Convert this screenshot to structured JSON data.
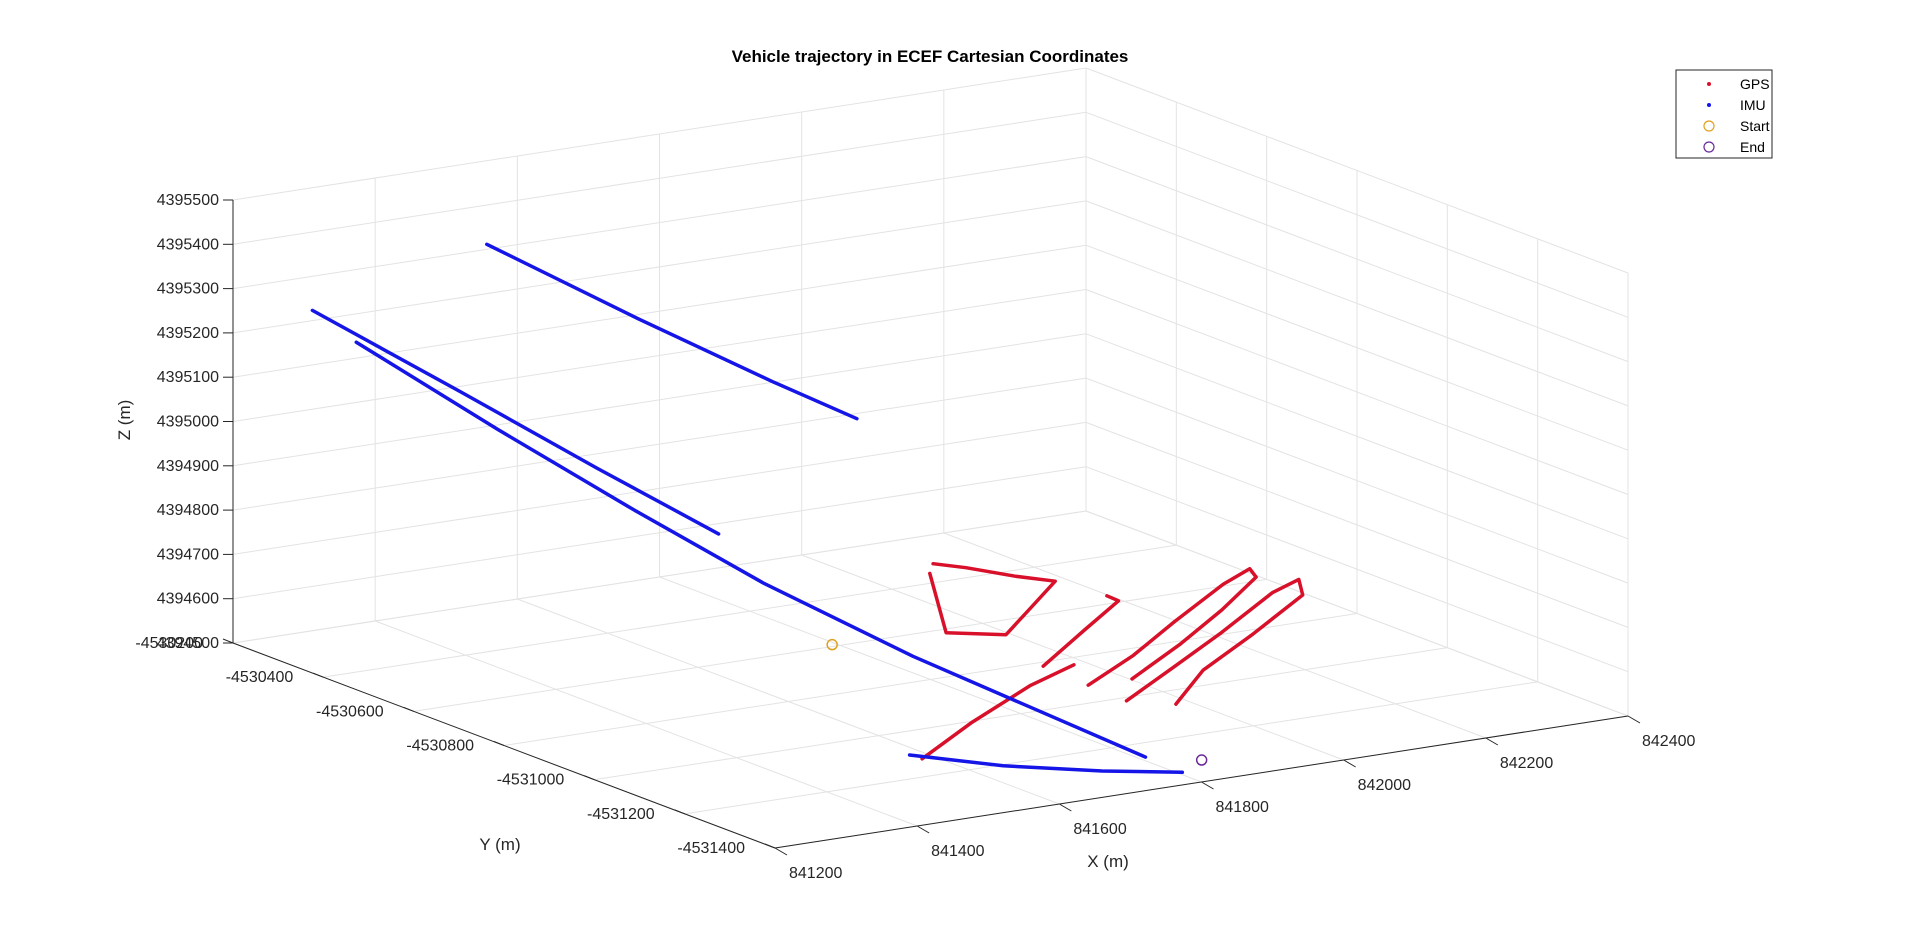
{
  "chart_data": {
    "type": "line",
    "projection": "3d",
    "title": "Vehicle trajectory in ECEF Cartesian Coordinates",
    "xlabel": "X (m)",
    "ylabel": "Y (m)",
    "zlabel": "Z (m)",
    "xlim": [
      841200,
      842400
    ],
    "ylim": [
      -4531400,
      -4530200
    ],
    "zlim": [
      4394500,
      4395500
    ],
    "grid": true,
    "legend_position": "top-right",
    "x_ticks": [
      "841200",
      "841400",
      "841600",
      "841800",
      "842000",
      "842200",
      "842400"
    ],
    "y_ticks": [
      "-4530200",
      "-4530400",
      "-4530600",
      "-4530800",
      "-4531000",
      "-4531200",
      "-4531400"
    ],
    "z_ticks": [
      "4394500",
      "4394600",
      "4394700",
      "4394800",
      "4394900",
      "4395000",
      "4395100",
      "4395200",
      "4395300",
      "4395400",
      "4395500"
    ],
    "legend": [
      {
        "name": "GPS",
        "marker": "dot",
        "color": "#d8102a"
      },
      {
        "name": "IMU",
        "marker": "dot",
        "color": "#1515e8"
      },
      {
        "name": "Start",
        "marker": "circle",
        "color": "#e0a020"
      },
      {
        "name": "End",
        "marker": "circle",
        "color": "#6a2a9a"
      }
    ],
    "series": [
      {
        "name": "GPS",
        "color": "#d8102a",
        "segments": [
          [
            [
              841752,
              -4530874,
              4394780
            ],
            [
              841752,
              -4530910,
              4394660
            ],
            [
              841830,
              -4530920,
              4394640
            ],
            [
              841890,
              -4530880,
              4394670
            ],
            [
              841950,
              -4530840,
              4394700
            ],
            [
              841900,
              -4530830,
              4394720
            ],
            [
              841850,
              -4530800,
              4394740
            ],
            [
              841810,
              -4530790,
              4394755
            ]
          ],
          [
            [
              841860,
              -4530955,
              4394575
            ],
            [
              841950,
              -4530905,
              4394615
            ],
            [
              842020,
              -4530870,
              4394650
            ],
            [
              842010,
              -4530860,
              4394660
            ]
          ],
          [
            [
              841898,
              -4530995,
              4394538
            ],
            [
              841990,
              -4530950,
              4394565
            ],
            [
              842080,
              -4530900,
              4394600
            ],
            [
              842180,
              -4530850,
              4394640
            ],
            [
              842230,
              -4530830,
              4394655
            ],
            [
              842220,
              -4530860,
              4394650
            ],
            [
              842140,
              -4530910,
              4394615
            ],
            [
              842050,
              -4530960,
              4394580
            ],
            [
              841950,
              -4531010,
              4394545
            ]
          ],
          [
            [
              841922,
              -4531042,
              4394515
            ],
            [
              842020,
              -4530990,
              4394545
            ],
            [
              842120,
              -4530940,
              4394580
            ],
            [
              842230,
              -4530880,
              4394620
            ],
            [
              842280,
              -4530860,
              4394630
            ],
            [
              842260,
              -4530900,
              4394615
            ],
            [
              842150,
              -4530960,
              4394575
            ],
            [
              842050,
              -4531010,
              4394540
            ],
            [
              841980,
              -4531060,
              4394500
            ]
          ],
          [
            [
              841588,
              -4531115,
              4394495
            ],
            [
              841700,
              -4531050,
              4394525
            ],
            [
              841820,
              -4530990,
              4394555
            ],
            [
              841900,
              -4530960,
              4394570
            ]
          ]
        ]
      },
      {
        "name": "IMU",
        "color": "#1515e8",
        "segments": [
          [
            [
              841240,
              -4530410,
              4395250
            ],
            [
              841350,
              -4530550,
              4395080
            ],
            [
              841460,
              -4530680,
              4394920
            ],
            [
              841560,
              -4530810,
              4394780
            ],
            [
              841680,
              -4530950,
              4394640
            ],
            [
              841780,
              -4531050,
              4394540
            ],
            [
              841880,
              -4531150,
              4394440
            ]
          ],
          [
            [
              841210,
              -4530360,
              4395310
            ],
            [
              841330,
              -4530500,
              4395150
            ],
            [
              841440,
              -4530630,
              4395000
            ],
            [
              841540,
              -4530740,
              4394870
            ]
          ],
          [
            [
              841430,
              -4530400,
              4395420
            ],
            [
              841560,
              -4530530,
              4395270
            ],
            [
              841680,
              -4530640,
              4395140
            ],
            [
              841760,
              -4530700,
              4395060
            ]
          ],
          [
            [
              841580,
              -4531100,
              4394500
            ],
            [
              841680,
              -4531150,
              4394470
            ],
            [
              841800,
              -4531180,
              4394440
            ],
            [
              841900,
              -4531200,
              4394420
            ]
          ]
        ]
      }
    ],
    "start_point": [
      841560,
      -4530960,
      4394700
    ],
    "end_point": [
      841940,
      -4531180,
      4394430
    ]
  }
}
